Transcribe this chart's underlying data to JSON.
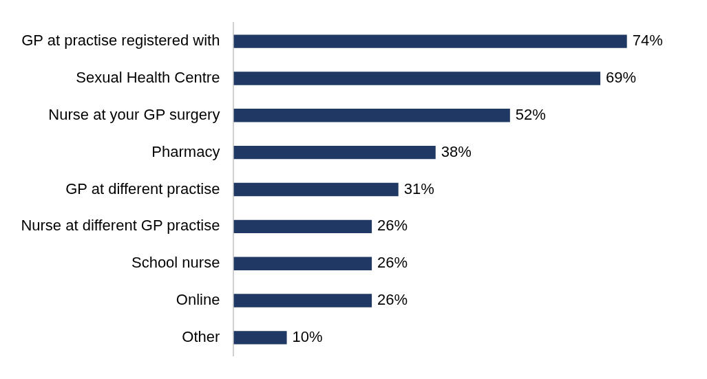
{
  "chart_data": {
    "type": "bar",
    "orientation": "horizontal",
    "categories": [
      "GP at practise registered with",
      "Sexual Health Centre",
      "Nurse at your GP surgery",
      "Pharmacy",
      "GP at different practise",
      "Nurse at different GP practise",
      "School nurse",
      "Online",
      "Other"
    ],
    "values": [
      74,
      69,
      52,
      38,
      31,
      26,
      26,
      26,
      10
    ],
    "value_labels": [
      "74%",
      "69%",
      "52%",
      "38%",
      "31%",
      "26%",
      "26%",
      "26%",
      "10%"
    ],
    "color": "#203864",
    "legend": false,
    "tick_labels": "y"
  }
}
